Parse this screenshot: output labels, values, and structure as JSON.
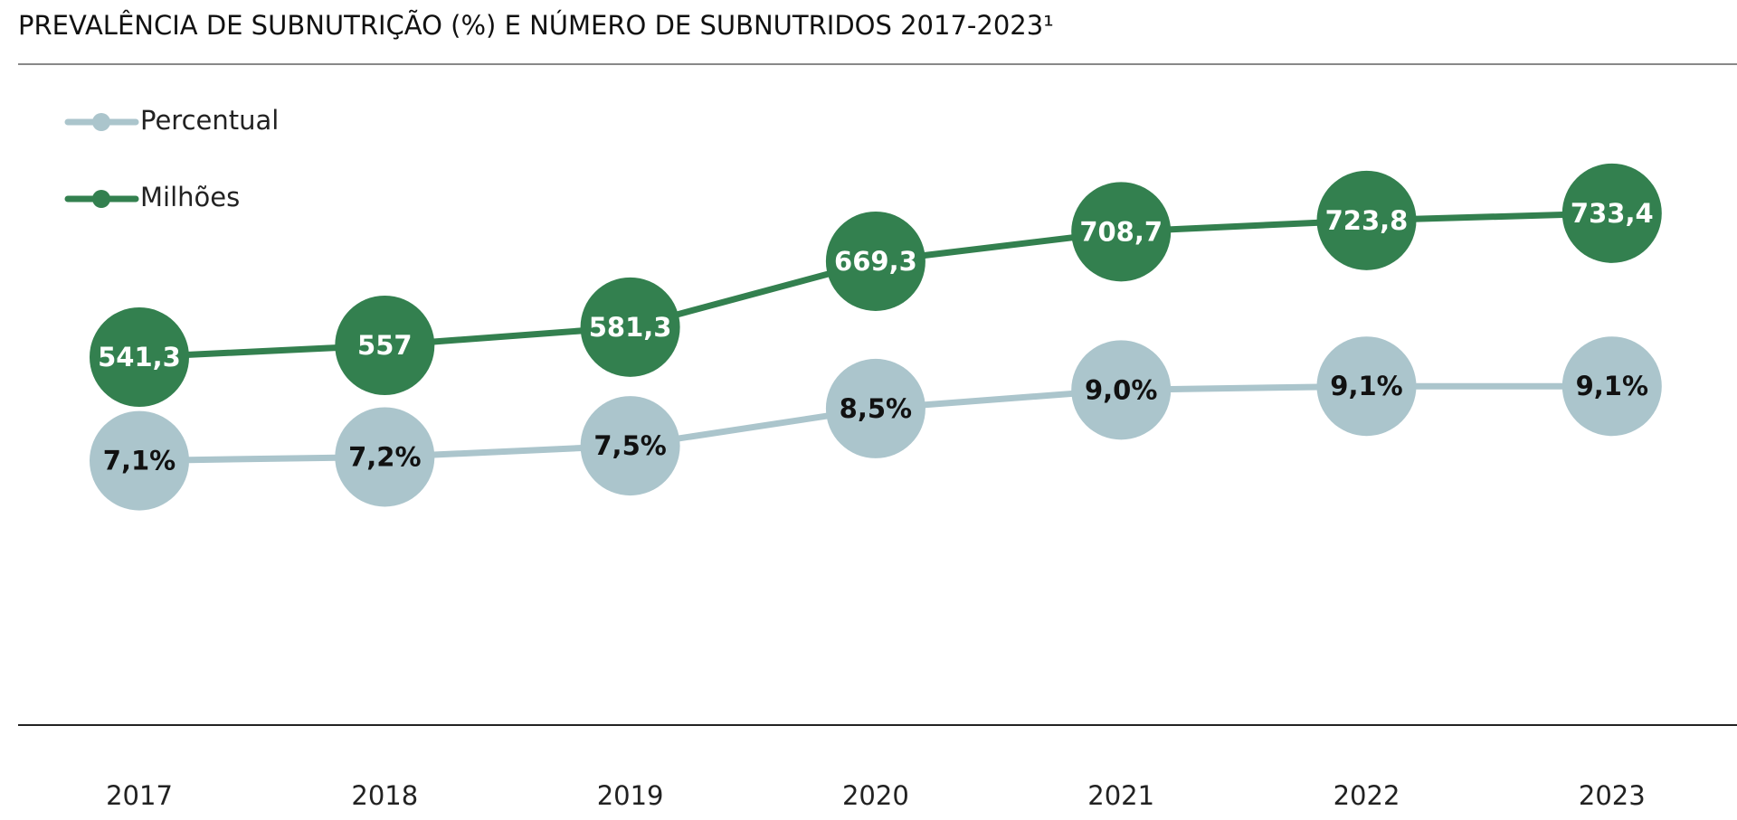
{
  "chart_data": {
    "type": "line",
    "title": "PREVALÊNCIA DE SUBNUTRIÇÃO (%) E NÚMERO DE SUBNUTRIDOS 2017-2023¹",
    "categories": [
      "2017",
      "2018",
      "2019",
      "2020",
      "2021",
      "2022",
      "2023"
    ],
    "series": [
      {
        "name": "Percentual",
        "color": "#abc5cc",
        "axis": "y",
        "values": [
          7.1,
          7.2,
          7.5,
          8.5,
          9.0,
          9.1,
          9.1
        ],
        "value_labels": [
          "7,1%",
          "7,2%",
          "7,5%",
          "8,5%",
          "9,0%",
          "9,1%",
          "9,1%"
        ]
      },
      {
        "name": "Milhões",
        "color": "#33804f",
        "axis": "y2",
        "values": [
          541.3,
          557,
          581.3,
          669.3,
          708.7,
          723.8,
          733.4
        ],
        "value_labels": [
          "541,3",
          "557",
          "581,3",
          "669,3",
          "708,7",
          "723,8",
          "733,4"
        ]
      }
    ],
    "ylim": [
      0,
      17.7
    ],
    "y2lim": [
      50,
      930
    ]
  }
}
